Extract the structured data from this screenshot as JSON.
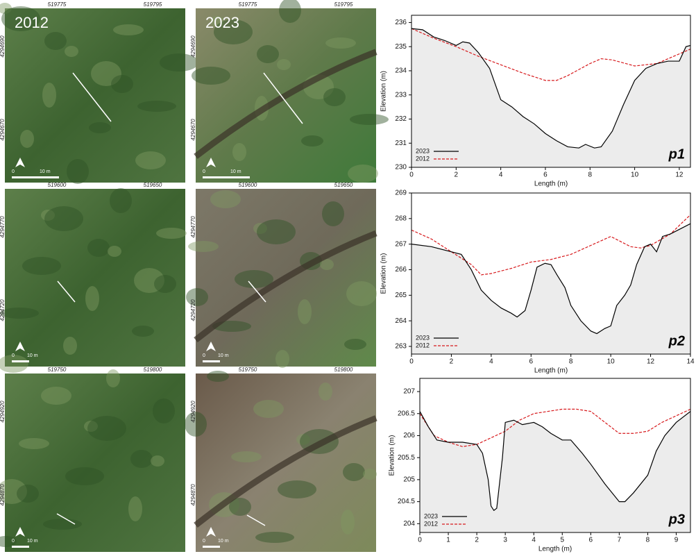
{
  "map_panels": [
    {
      "year": "2012",
      "easting": [
        "519775",
        "519795"
      ],
      "northing": [
        "4294690",
        "4294670"
      ],
      "scale": [
        "0",
        "10 m"
      ]
    },
    {
      "year": "2023",
      "easting": [
        "519775",
        "519795"
      ],
      "northing": [
        "4294690",
        "4294670"
      ],
      "scale": [
        "0",
        "10 m"
      ]
    },
    {
      "easting": [
        "519600",
        "519650"
      ],
      "northing": [
        "4294770",
        "4294720"
      ],
      "scale": [
        "0",
        "10 m"
      ]
    },
    {
      "easting": [
        "519600",
        "519650"
      ],
      "northing": [
        "4294770",
        "4294720"
      ],
      "scale": [
        "0",
        "10 m"
      ]
    },
    {
      "easting": [
        "519750",
        "519800"
      ],
      "northing": [
        "4294920",
        "4294870"
      ],
      "scale": [
        "0",
        "10 m"
      ]
    },
    {
      "easting": [
        "519750",
        "519800"
      ],
      "northing": [
        "4294920",
        "4294870"
      ],
      "scale": [
        "0",
        "10 m"
      ]
    }
  ],
  "chart_data": [
    {
      "type": "line",
      "annotation": "p1",
      "x_label": "Length (m)",
      "y_label": "Elevation (m)",
      "xlim": [
        0,
        12.5
      ],
      "xticks": [
        0,
        2,
        4,
        6,
        8,
        10,
        12
      ],
      "ylim": [
        230,
        236.3
      ],
      "yticks": [
        230,
        231,
        232,
        233,
        234,
        235,
        236
      ],
      "legend": "lower left",
      "fill_below": "#ececec",
      "series": [
        {
          "name": "2023",
          "color": "#000000",
          "dash": "solid",
          "x": [
            0,
            0.5,
            1,
            1.5,
            2,
            2.3,
            2.6,
            3,
            3.5,
            4,
            4.5,
            5,
            5.5,
            6,
            6.5,
            7,
            7.5,
            7.8,
            8.2,
            8.5,
            9,
            9.5,
            10,
            10.5,
            11,
            11.5,
            12,
            12.3,
            12.5
          ],
          "values": [
            235.75,
            235.7,
            235.4,
            235.25,
            235.05,
            235.2,
            235.15,
            234.75,
            234.1,
            232.8,
            232.5,
            232.1,
            231.8,
            231.4,
            231.1,
            230.85,
            230.8,
            230.95,
            230.8,
            230.85,
            231.5,
            232.6,
            233.6,
            234.1,
            234.3,
            234.4,
            234.4,
            235.0,
            235.05
          ]
        },
        {
          "name": "2012",
          "color": "#d7191c",
          "dash": "dashed",
          "x": [
            0,
            1,
            2,
            3,
            4,
            5,
            6,
            6.5,
            7,
            8,
            8.5,
            9,
            10,
            11,
            12,
            12.5
          ],
          "values": [
            235.75,
            235.35,
            235.0,
            234.6,
            234.25,
            233.9,
            233.6,
            233.6,
            233.8,
            234.3,
            234.5,
            234.45,
            234.2,
            234.3,
            234.7,
            234.9
          ]
        }
      ]
    },
    {
      "type": "line",
      "annotation": "p2",
      "x_label": "Length (m)",
      "y_label": "Elevation (m)",
      "xlim": [
        0,
        14
      ],
      "xticks": [
        0,
        2,
        4,
        6,
        8,
        10,
        12,
        14
      ],
      "ylim": [
        262.7,
        269
      ],
      "yticks": [
        263,
        264,
        265,
        266,
        267,
        268,
        269
      ],
      "legend": "lower left",
      "fill_below": "#ececec",
      "series": [
        {
          "name": "2023",
          "color": "#000000",
          "dash": "solid",
          "x": [
            0,
            1,
            2,
            2.5,
            3,
            3.5,
            4,
            4.5,
            5,
            5.3,
            5.7,
            6,
            6.3,
            6.7,
            7,
            7.3,
            7.7,
            8,
            8.5,
            9,
            9.3,
            9.7,
            10,
            10.3,
            10.7,
            11,
            11.3,
            11.7,
            12,
            12.3,
            12.6,
            13,
            13.5,
            14
          ],
          "values": [
            267.0,
            266.9,
            266.7,
            266.6,
            266.0,
            265.2,
            264.8,
            264.5,
            264.3,
            264.15,
            264.4,
            265.2,
            266.1,
            266.25,
            266.2,
            265.8,
            265.3,
            264.6,
            264.0,
            263.6,
            263.5,
            263.7,
            263.8,
            264.6,
            265.0,
            265.4,
            266.2,
            266.9,
            267.0,
            266.7,
            267.3,
            267.4,
            267.6,
            267.8
          ]
        },
        {
          "name": "2012",
          "color": "#d7191c",
          "dash": "dashed",
          "x": [
            0,
            1,
            2,
            3,
            3.5,
            4,
            5,
            6,
            7,
            8,
            9,
            10,
            11,
            11.5,
            12,
            13,
            14
          ],
          "values": [
            267.55,
            267.2,
            266.7,
            266.2,
            265.8,
            265.85,
            266.05,
            266.3,
            266.4,
            266.6,
            266.95,
            267.3,
            266.9,
            266.85,
            266.95,
            267.4,
            268.15
          ]
        }
      ]
    },
    {
      "type": "line",
      "annotation": "p3",
      "x_label": "Length (m)",
      "y_label": "Elevation (m)",
      "xlim": [
        0,
        9.5
      ],
      "xticks": [
        0,
        1,
        2,
        3,
        4,
        5,
        6,
        7,
        8,
        9
      ],
      "ylim": [
        203.8,
        207.3
      ],
      "yticks": [
        204,
        204.5,
        205,
        205.5,
        206,
        206.5,
        207
      ],
      "legend": "lower left",
      "fill_below": "#ececec",
      "series": [
        {
          "name": "2023",
          "color": "#000000",
          "dash": "solid",
          "x": [
            0,
            0.3,
            0.6,
            1,
            1.5,
            2,
            2.2,
            2.4,
            2.5,
            2.6,
            2.7,
            2.9,
            3.0,
            3.3,
            3.6,
            4,
            4.3,
            4.6,
            5,
            5.3,
            5.7,
            6,
            6.5,
            7,
            7.2,
            7.5,
            8,
            8.3,
            8.6,
            9,
            9.5
          ],
          "values": [
            206.55,
            206.2,
            205.9,
            205.85,
            205.85,
            205.8,
            205.6,
            205.0,
            204.4,
            204.3,
            204.35,
            205.5,
            206.3,
            206.35,
            206.25,
            206.3,
            206.2,
            206.05,
            205.9,
            205.9,
            205.6,
            205.35,
            204.9,
            204.5,
            204.5,
            204.7,
            205.1,
            205.65,
            206.0,
            206.3,
            206.55
          ]
        },
        {
          "name": "2012",
          "color": "#d7191c",
          "dash": "dashed",
          "x": [
            0,
            0.5,
            1,
            1.5,
            2,
            2.5,
            3,
            3.5,
            4,
            4.5,
            5,
            5.5,
            6,
            6.5,
            7,
            7.5,
            8,
            8.5,
            9,
            9.5
          ],
          "values": [
            206.5,
            206.0,
            205.85,
            205.75,
            205.8,
            205.95,
            206.1,
            206.35,
            206.5,
            206.55,
            206.6,
            206.6,
            206.55,
            206.3,
            206.05,
            206.05,
            206.1,
            206.3,
            206.45,
            206.6
          ]
        }
      ]
    }
  ]
}
